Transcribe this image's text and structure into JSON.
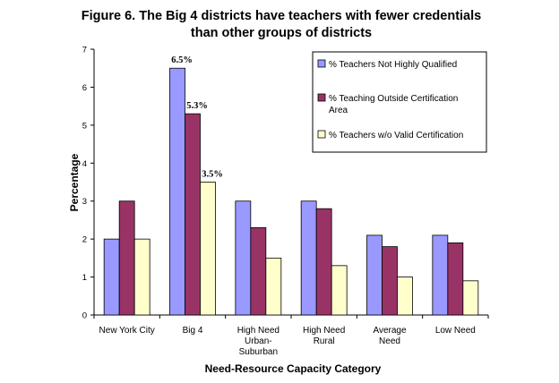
{
  "chart_data": {
    "type": "bar",
    "title_lines": [
      "Figure 6.  The Big 4 districts have teachers with fewer credentials",
      "than other groups of districts"
    ],
    "xlabel": "Need-Resource Capacity Category",
    "ylabel": "Percentage",
    "ylim": [
      0,
      7
    ],
    "yticks": [
      "0",
      "1",
      "2",
      "3",
      "4",
      "5",
      "6",
      "7"
    ],
    "categories": [
      [
        "New York City"
      ],
      [
        "Big 4"
      ],
      [
        "High Need",
        "Urban-",
        "Suburban"
      ],
      [
        "High Need",
        "Rural"
      ],
      [
        "Average",
        "Need"
      ],
      [
        "Low Need"
      ]
    ],
    "series": [
      {
        "name": "% Teachers Not Highly Qualified",
        "color": "#9999ff",
        "values": [
          2.0,
          6.5,
          3.0,
          3.0,
          2.1,
          2.1
        ]
      },
      {
        "name": "% Teaching Outside Certification Area",
        "color": "#993366",
        "values": [
          3.0,
          5.3,
          2.3,
          2.8,
          1.8,
          1.9
        ]
      },
      {
        "name": "% Teachers w/o Valid Certification",
        "color": "#ffffcc",
        "values": [
          2.0,
          3.5,
          1.5,
          1.3,
          1.0,
          0.9
        ]
      }
    ],
    "legend_lines": [
      [
        "% Teachers Not Highly Qualified"
      ],
      [
        "% Teaching Outside Certification",
        "Area"
      ],
      [
        "% Teachers w/o Valid Certification"
      ]
    ],
    "legend_position": "top-right",
    "annotations": [
      {
        "category": 1,
        "series": 0,
        "text": "6.5%"
      },
      {
        "category": 1,
        "series": 1,
        "text": "5.3%"
      },
      {
        "category": 1,
        "series": 2,
        "text": "3.5%"
      }
    ],
    "grid": false
  }
}
